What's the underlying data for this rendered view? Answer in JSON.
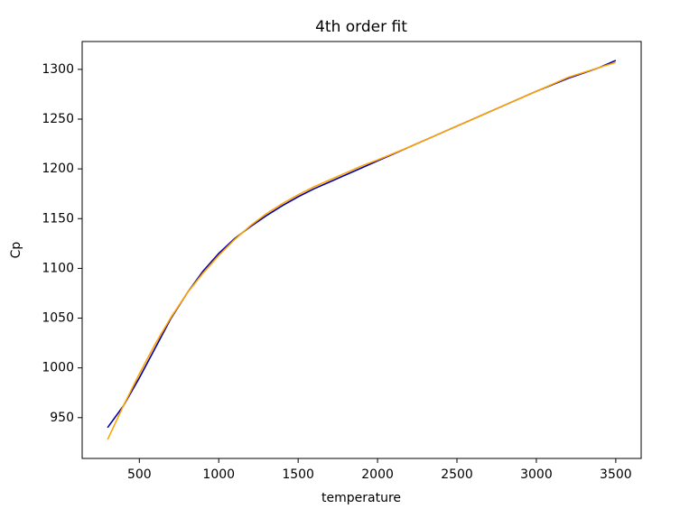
{
  "chart_data": {
    "type": "line",
    "title": "4th order fit",
    "x_label": "temperature",
    "y_label": "Cp",
    "x": [
      300,
      400,
      500,
      600,
      700,
      800,
      900,
      1000,
      1100,
      1200,
      1300,
      1400,
      1500,
      1600,
      1700,
      1800,
      1900,
      2000,
      2200,
      2400,
      2600,
      2800,
      3000,
      3200,
      3400,
      3500
    ],
    "series": [
      {
        "color": "#0000aa",
        "values": [
          940,
          962,
          990,
          1020,
          1050,
          1075,
          1097,
          1115,
          1130,
          1142,
          1153,
          1163,
          1172,
          1180,
          1187,
          1194,
          1201,
          1208,
          1222,
          1236,
          1250,
          1264,
          1278,
          1291,
          1302,
          1309
        ]
      },
      {
        "color": "#ffa500",
        "values": [
          928,
          962,
          994,
          1024,
          1051,
          1075,
          1095,
          1113,
          1129,
          1143,
          1155,
          1165,
          1174,
          1182,
          1189,
          1196,
          1203,
          1209,
          1222,
          1236,
          1250,
          1264,
          1278,
          1292,
          1302,
          1307
        ]
      }
    ],
    "xlim": [
      140,
      3660
    ],
    "ylim": [
      909,
      1328
    ],
    "xticks": [
      500,
      1000,
      1500,
      2000,
      2500,
      3000,
      3500
    ],
    "yticks": [
      950,
      1000,
      1050,
      1100,
      1150,
      1200,
      1250,
      1300
    ],
    "grid": false
  }
}
